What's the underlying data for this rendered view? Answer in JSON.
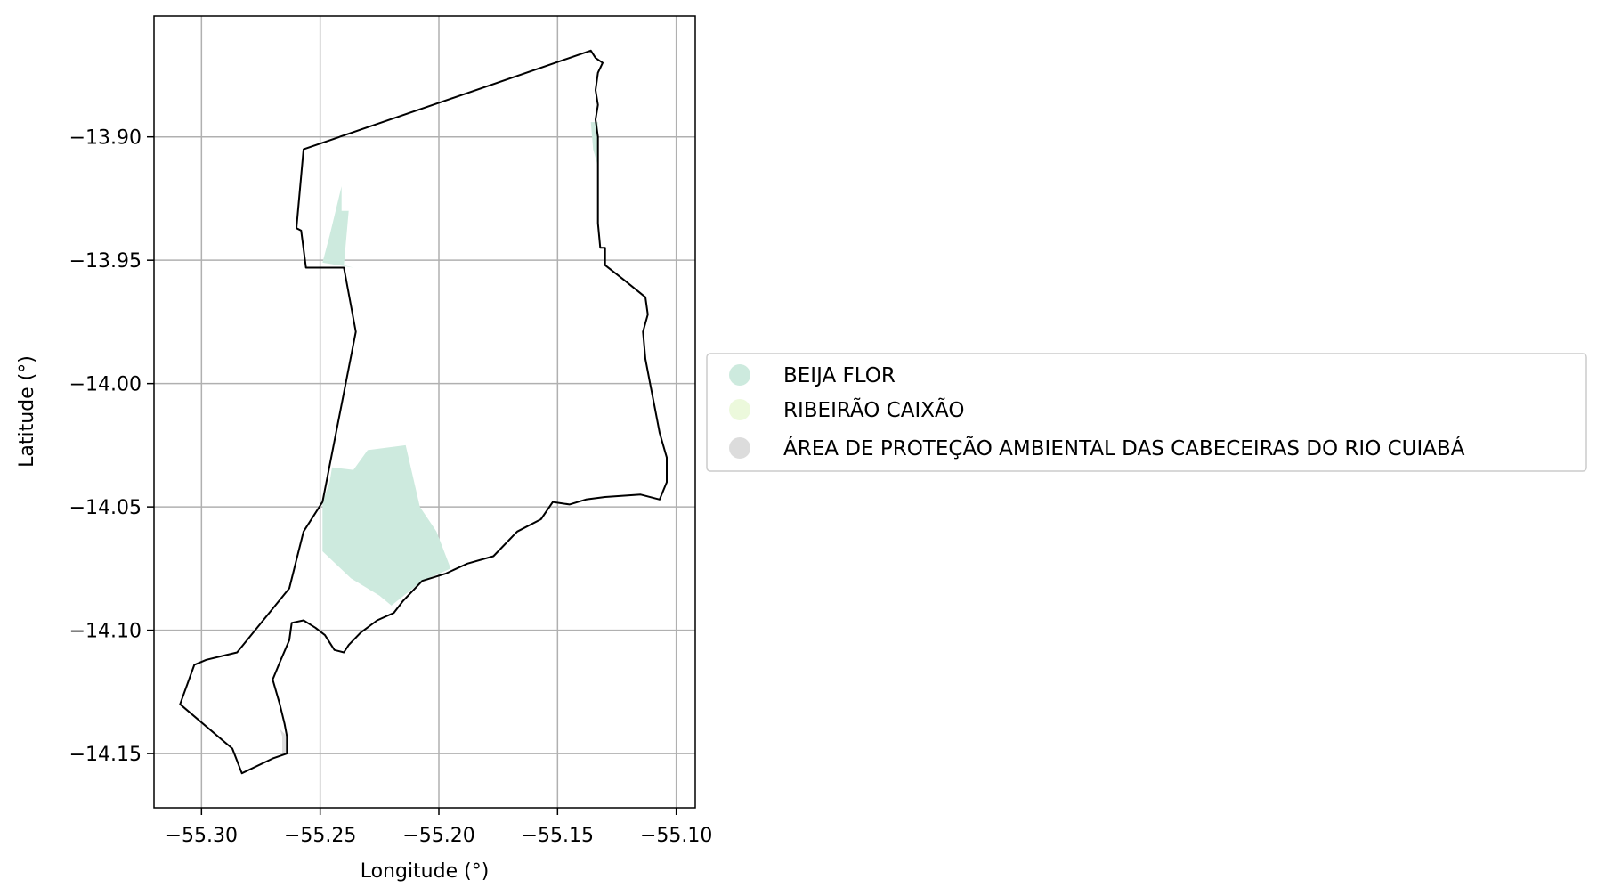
{
  "chart_data": {
    "type": "map",
    "xlabel": "Longitude (°)",
    "ylabel": "Latitude (°)",
    "xlim": [
      -55.32,
      -55.092
    ],
    "ylim": [
      -14.172,
      -13.851
    ],
    "xticks": [
      -55.3,
      -55.25,
      -55.2,
      -55.15,
      -55.1
    ],
    "xtick_labels": [
      "−55.30",
      "−55.25",
      "−55.20",
      "−55.15",
      "−55.10"
    ],
    "yticks": [
      -13.9,
      -13.95,
      -14.0,
      -14.05,
      -14.1,
      -14.15
    ],
    "ytick_labels": [
      "−13.90",
      "−13.95",
      "−14.00",
      "−14.05",
      "−14.10",
      "−14.15"
    ],
    "grid": true,
    "legend_position": "center-right, outside plot",
    "legend": [
      {
        "label": "BEIJA FLOR",
        "color": "#cdeade"
      },
      {
        "label": "RIBEIRÃO CAIXÃO",
        "color": "#ecf9dc"
      },
      {
        "label": "ÁREA DE PROTEÇÃO AMBIENTAL DAS CABECEIRAS DO RIO CUIABÁ",
        "color": "#dcdcdc"
      }
    ],
    "boundary_color": "#000000",
    "boundary_lonlat": [
      [
        -55.136,
        -13.865
      ],
      [
        -55.134,
        -13.868
      ],
      [
        -55.131,
        -13.87
      ],
      [
        -55.133,
        -13.874
      ],
      [
        -55.134,
        -13.881
      ],
      [
        -55.133,
        -13.887
      ],
      [
        -55.134,
        -13.893
      ],
      [
        -55.133,
        -13.9
      ],
      [
        -55.133,
        -13.912
      ],
      [
        -55.133,
        -13.926
      ],
      [
        -55.133,
        -13.935
      ],
      [
        -55.132,
        -13.945
      ],
      [
        -55.13,
        -13.945
      ],
      [
        -55.13,
        -13.952
      ],
      [
        -55.122,
        -13.958
      ],
      [
        -55.113,
        -13.965
      ],
      [
        -55.112,
        -13.972
      ],
      [
        -55.114,
        -13.979
      ],
      [
        -55.113,
        -13.99
      ],
      [
        -55.111,
        -14.0
      ],
      [
        -55.109,
        -14.01
      ],
      [
        -55.107,
        -14.02
      ],
      [
        -55.104,
        -14.03
      ],
      [
        -55.104,
        -14.04
      ],
      [
        -55.107,
        -14.047
      ],
      [
        -55.115,
        -14.045
      ],
      [
        -55.13,
        -14.046
      ],
      [
        -55.138,
        -14.047
      ],
      [
        -55.145,
        -14.049
      ],
      [
        -55.152,
        -14.048
      ],
      [
        -55.157,
        -14.055
      ],
      [
        -55.167,
        -14.06
      ],
      [
        -55.177,
        -14.07
      ],
      [
        -55.188,
        -14.073
      ],
      [
        -55.197,
        -14.077
      ],
      [
        -55.207,
        -14.08
      ],
      [
        -55.215,
        -14.088
      ],
      [
        -55.219,
        -14.093
      ],
      [
        -55.226,
        -14.096
      ],
      [
        -55.233,
        -14.101
      ],
      [
        -55.238,
        -14.106
      ],
      [
        -55.24,
        -14.109
      ],
      [
        -55.244,
        -14.108
      ],
      [
        -55.248,
        -14.102
      ],
      [
        -55.252,
        -14.099
      ],
      [
        -55.257,
        -14.096
      ],
      [
        -55.262,
        -14.097
      ],
      [
        -55.263,
        -14.104
      ],
      [
        -55.267,
        -14.113
      ],
      [
        -55.27,
        -14.12
      ],
      [
        -55.267,
        -14.13
      ],
      [
        -55.265,
        -14.138
      ],
      [
        -55.264,
        -14.143
      ],
      [
        -55.264,
        -14.15
      ],
      [
        -55.27,
        -14.152
      ],
      [
        -55.283,
        -14.158
      ],
      [
        -55.287,
        -14.148
      ],
      [
        -55.309,
        -14.13
      ],
      [
        -55.303,
        -14.114
      ],
      [
        -55.298,
        -14.112
      ],
      [
        -55.285,
        -14.109
      ],
      [
        -55.263,
        -14.083
      ],
      [
        -55.257,
        -14.06
      ],
      [
        -55.249,
        -14.048
      ],
      [
        -55.235,
        -13.979
      ],
      [
        -55.24,
        -13.953
      ],
      [
        -55.256,
        -13.953
      ],
      [
        -55.258,
        -13.938
      ],
      [
        -55.26,
        -13.937
      ],
      [
        -55.257,
        -13.905
      ],
      [
        -55.136,
        -13.865
      ]
    ],
    "areas": [
      {
        "name": "BEIJA FLOR",
        "color": "#cdeade",
        "polygon": [
          [
            -55.241,
            -13.92
          ],
          [
            -55.244,
            -13.932
          ],
          [
            -55.246,
            -13.94
          ],
          [
            -55.249,
            -13.951
          ],
          [
            -55.236,
            -13.953
          ],
          [
            -55.24,
            -13.952
          ],
          [
            -55.238,
            -13.93
          ],
          [
            -55.241,
            -13.93
          ]
        ]
      },
      {
        "name": "BEIJA FLOR",
        "color": "#cdeade",
        "polygon": [
          [
            -55.136,
            -13.894
          ],
          [
            -55.133,
            -13.894
          ],
          [
            -55.133,
            -13.912
          ],
          [
            -55.135,
            -13.905
          ]
        ]
      },
      {
        "name": "BEIJA FLOR",
        "color": "#cdeade",
        "polygon": [
          [
            -55.245,
            -14.034
          ],
          [
            -55.236,
            -14.035
          ],
          [
            -55.23,
            -14.027
          ],
          [
            -55.214,
            -14.025
          ],
          [
            -55.208,
            -14.05
          ],
          [
            -55.201,
            -14.06
          ],
          [
            -55.195,
            -14.075
          ],
          [
            -55.207,
            -14.08
          ],
          [
            -55.22,
            -14.09
          ],
          [
            -55.225,
            -14.086
          ],
          [
            -55.237,
            -14.079
          ],
          [
            -55.249,
            -14.068
          ],
          [
            -55.249,
            -14.048
          ],
          [
            -55.246,
            -14.04
          ]
        ]
      },
      {
        "name": "ÁREA DE PROTEÇÃO AMBIENTAL DAS CABECEIRAS DO RIO CUIABÁ",
        "color": "#dcdcdc",
        "polygon": [
          [
            -55.267,
            -14.14
          ],
          [
            -55.264,
            -14.143
          ],
          [
            -55.264,
            -14.15
          ],
          [
            -55.266,
            -14.15
          ],
          [
            -55.266,
            -14.143
          ]
        ]
      }
    ]
  }
}
